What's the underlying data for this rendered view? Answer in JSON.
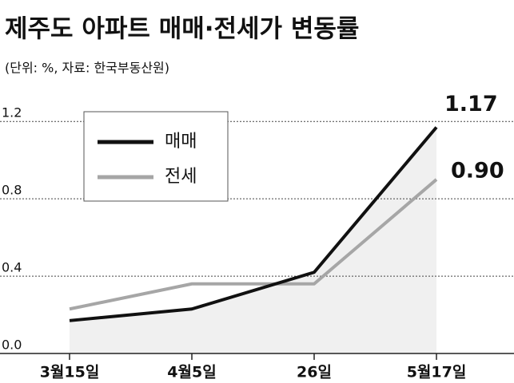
{
  "chart_data": {
    "type": "line",
    "title": "제주도 아파트 매매·전세가 변동률",
    "subtitle": "(단위: %, 자료: 한국부동산원)",
    "categories": [
      "3월15일",
      "4월5일",
      "26일",
      "5월17일"
    ],
    "series": [
      {
        "name": "매매",
        "color": "#111111",
        "values": [
          0.17,
          0.23,
          0.42,
          1.17
        ]
      },
      {
        "name": "전세",
        "color": "#a6a6a6",
        "values": [
          0.23,
          0.36,
          0.36,
          0.9
        ],
        "value_labels": [
          null,
          null,
          null,
          "0.90"
        ]
      }
    ],
    "ylim": [
      0,
      1.3
    ],
    "yticks": [
      {
        "value": 0,
        "label": "0.0"
      },
      0.4,
      0.8,
      1.2
    ],
    "grid": true
  }
}
